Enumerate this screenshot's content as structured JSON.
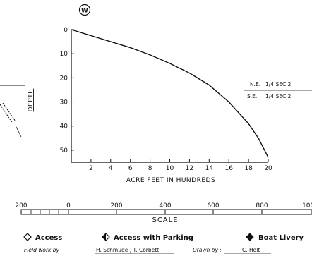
{
  "corner_mark": "W",
  "chart_data": {
    "type": "line",
    "title": "",
    "xlabel": "ACRE FEET IN HUNDREDS",
    "ylabel": "DEPTH",
    "xlim": [
      0,
      20
    ],
    "ylim": [
      0,
      55
    ],
    "y_inverted": true,
    "x_ticks": [
      2,
      4,
      6,
      8,
      10,
      12,
      14,
      16,
      18,
      20
    ],
    "y_ticks": [
      0,
      10,
      20,
      30,
      40,
      50
    ],
    "grid": false,
    "series": [
      {
        "x": [
          0,
          2,
          4,
          6,
          8,
          10,
          12,
          14,
          16,
          18,
          19,
          20
        ],
        "y": [
          0,
          2.5,
          5,
          7.5,
          10.5,
          14,
          18,
          23,
          30,
          39,
          45,
          53
        ]
      }
    ]
  },
  "location": {
    "ne_label": "N.E.",
    "ne_value": "1/4 SEC 2",
    "se_label": "S.E.",
    "se_value": "1/4 SEC 2"
  },
  "scale": {
    "title": "SCALE",
    "labels": [
      "200",
      "0",
      "200",
      "400",
      "600",
      "800",
      "100"
    ]
  },
  "legend": {
    "access": "Access",
    "access_parking": "Access with Parking",
    "boat_livery": "Boat Livery"
  },
  "credits": {
    "field_prefix": "Field work by",
    "field_names": "H. Schmude , T. Corbett",
    "drawn_prefix": "Drawn by :",
    "drawn_name": "C. Holt"
  }
}
